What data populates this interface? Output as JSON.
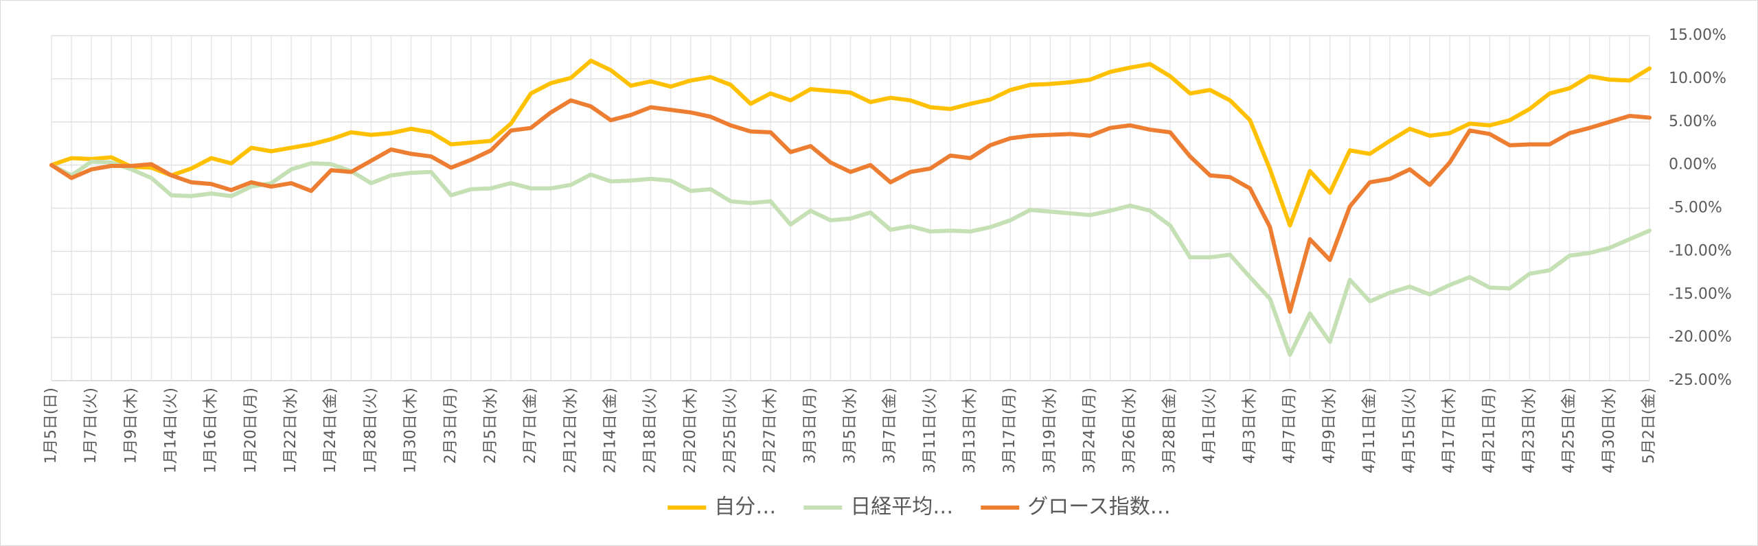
{
  "chart_data": {
    "type": "line",
    "categories": [
      "1月5日(日)",
      null,
      "1月7日(火)",
      null,
      "1月9日(木)",
      null,
      "1月14日(火)",
      null,
      "1月16日(木)",
      null,
      "1月20日(月)",
      null,
      "1月22日(水)",
      null,
      "1月24日(金)",
      null,
      "1月28日(火)",
      null,
      "1月30日(木)",
      null,
      "2月3日(月)",
      null,
      "2月5日(水)",
      null,
      "2月7日(金)",
      null,
      "2月12日(水)",
      null,
      "2月14日(金)",
      null,
      "2月18日(火)",
      null,
      "2月20日(木)",
      null,
      "2月25日(火)",
      null,
      "2月27日(木)",
      null,
      "3月3日(月)",
      null,
      "3月5日(水)",
      null,
      "3月7日(金)",
      null,
      "3月11日(火)",
      null,
      "3月13日(木)",
      null,
      "3月17日(月)",
      null,
      "3月19日(水)",
      null,
      "3月24日(月)",
      null,
      "3月26日(水)",
      null,
      "3月28日(金)",
      null,
      "4月1日(火)",
      null,
      "4月3日(木)",
      null,
      "4月7日(月)",
      null,
      "4月9日(水)",
      null,
      "4月11日(金)",
      null,
      "4月15日(火)",
      null,
      "4月17日(木)",
      null,
      "4月21日(月)",
      null,
      "4月23日(水)",
      null,
      "4月25日(金)",
      null,
      "4月30日(水)",
      null,
      "5月2日(金)"
    ],
    "series": [
      {
        "name": "自分…",
        "color": "#ffc000",
        "values": [
          0,
          0.8,
          0.7,
          0.9,
          -0.2,
          -0.3,
          -1.2,
          -0.4,
          0.8,
          0.2,
          2.0,
          1.6,
          2.0,
          2.4,
          3.0,
          3.8,
          3.5,
          3.7,
          4.2,
          3.8,
          2.4,
          2.6,
          2.8,
          4.8,
          8.3,
          9.5,
          10.1,
          12.1,
          11.0,
          9.2,
          9.7,
          9.1,
          9.8,
          10.2,
          9.3,
          7.1,
          8.3,
          7.5,
          8.8,
          8.6,
          8.4,
          7.3,
          7.8,
          7.5,
          6.7,
          6.5,
          7.1,
          7.6,
          8.7,
          9.3,
          9.4,
          9.6,
          9.9,
          10.8,
          11.3,
          11.7,
          10.3,
          8.3,
          8.7,
          7.5,
          5.2,
          -0.5,
          -7.0,
          -0.7,
          -3.2,
          1.7,
          1.3,
          2.8,
          4.2,
          3.4,
          3.7,
          4.8,
          4.6,
          5.2,
          6.5,
          8.3,
          8.9,
          10.3,
          9.9,
          9.8,
          11.2
        ]
      },
      {
        "name": "日経平均…",
        "color": "#c5e0b4",
        "values": [
          0,
          -1.2,
          0.4,
          0.3,
          -0.5,
          -1.5,
          -3.5,
          -3.6,
          -3.3,
          -3.6,
          -2.5,
          -2.1,
          -0.5,
          0.2,
          0.1,
          -0.7,
          -2.1,
          -1.2,
          -0.9,
          -0.8,
          -3.5,
          -2.8,
          -2.7,
          -2.1,
          -2.7,
          -2.7,
          -2.3,
          -1.1,
          -1.9,
          -1.8,
          -1.6,
          -1.8,
          -3.0,
          -2.8,
          -4.2,
          -4.4,
          -4.2,
          -6.9,
          -5.3,
          -6.4,
          -6.2,
          -5.5,
          -7.5,
          -7.1,
          -7.7,
          -7.6,
          -7.7,
          -7.2,
          -6.4,
          -5.2,
          -5.4,
          -5.6,
          -5.8,
          -5.3,
          -4.7,
          -5.3,
          -7.0,
          -10.7,
          -10.7,
          -10.4,
          -13.0,
          -15.5,
          -22.0,
          -17.2,
          -20.5,
          -13.3,
          -15.8,
          -14.8,
          -14.1,
          -15.0,
          -13.9,
          -13.0,
          -14.2,
          -14.3,
          -12.6,
          -12.2,
          -10.5,
          -10.2,
          -9.6,
          -8.6,
          -7.6
        ]
      },
      {
        "name": "グロース指数…",
        "color": "#ed7d31",
        "values": [
          0,
          -1.5,
          -0.5,
          -0.1,
          -0.1,
          0.1,
          -1.2,
          -2.0,
          -2.2,
          -2.9,
          -2.0,
          -2.5,
          -2.1,
          -3.0,
          -0.6,
          -0.8,
          0.5,
          1.8,
          1.3,
          1.0,
          -0.3,
          0.6,
          1.7,
          4.0,
          4.3,
          6.1,
          7.5,
          6.8,
          5.2,
          5.8,
          6.7,
          6.4,
          6.1,
          5.6,
          4.6,
          3.9,
          3.8,
          1.5,
          2.2,
          0.3,
          -0.8,
          0.0,
          -2.0,
          -0.8,
          -0.4,
          1.1,
          0.8,
          2.3,
          3.1,
          3.4,
          3.5,
          3.6,
          3.4,
          4.3,
          4.6,
          4.1,
          3.8,
          1.0,
          -1.2,
          -1.4,
          -2.7,
          -7.2,
          -17.0,
          -8.6,
          -11.0,
          -4.8,
          -2.0,
          -1.6,
          -0.5,
          -2.3,
          0.3,
          4.0,
          3.6,
          2.3,
          2.4,
          2.4,
          3.7,
          4.3,
          5.0,
          5.7,
          5.5
        ]
      }
    ],
    "ylim": [
      -25,
      15
    ],
    "yticks": [
      {
        "value": -25,
        "label": "-25.00%"
      },
      {
        "value": -20,
        "label": "-20.00%"
      },
      {
        "value": -15,
        "label": "-15.00%"
      },
      {
        "value": -10,
        "label": "-10.00%"
      },
      {
        "value": -5,
        "label": "-5.00%"
      },
      {
        "value": 0,
        "label": "0.00%"
      },
      {
        "value": 5,
        "label": "5.00%"
      },
      {
        "value": 10,
        "label": "10.00%"
      },
      {
        "value": 15,
        "label": "15.00%"
      }
    ],
    "grid": true,
    "legend": "bottom"
  }
}
